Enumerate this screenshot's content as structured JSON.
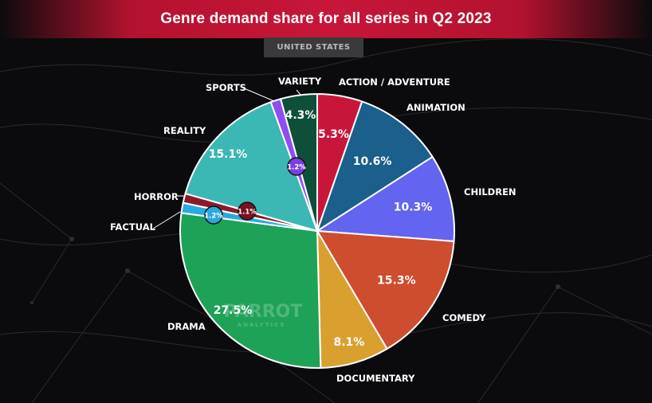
{
  "header": {
    "title": "Genre demand share for all series in Q2 2023",
    "region": "UNITED STATES"
  },
  "watermark": {
    "brand": "PARROT",
    "sub": "ANALYTICS"
  },
  "colors": {
    "title_bar": "#c8163a",
    "background": "#0b0b0d"
  },
  "chart_data": {
    "type": "pie",
    "title": "Genre demand share for all series in Q2 2023",
    "subtitle": "UNITED STATES",
    "unit": "%",
    "start": "12 o'clock",
    "direction": "clockwise",
    "slices": [
      {
        "label": "ACTION / ADVENTURE",
        "value": 5.3,
        "display": "5.3%",
        "color": "#c8163a"
      },
      {
        "label": "ANIMATION",
        "value": 10.6,
        "display": "10.6%",
        "color": "#1b5f8c"
      },
      {
        "label": "CHILDREN",
        "value": 10.3,
        "display": "10.3%",
        "color": "#6364f0"
      },
      {
        "label": "COMEDY",
        "value": 15.3,
        "display": "15.3%",
        "color": "#cd4d2e"
      },
      {
        "label": "DOCUMENTARY",
        "value": 8.1,
        "display": "8.1%",
        "color": "#d9a030"
      },
      {
        "label": "DRAMA",
        "value": 27.5,
        "display": "27.5%",
        "color": "#1ea257"
      },
      {
        "label": "FACTUAL",
        "value": 1.2,
        "display": "1.2%",
        "color": "#2aa9e0"
      },
      {
        "label": "HORROR",
        "value": 1.1,
        "display": "1.1%",
        "color": "#8c1a2a"
      },
      {
        "label": "REALITY",
        "value": 15.1,
        "display": "15.1%",
        "color": "#3bb7b4"
      },
      {
        "label": "SPORTS",
        "value": 1.2,
        "display": "1.2%",
        "color": "#8e4ef0"
      },
      {
        "label": "VARIETY",
        "value": 4.3,
        "display": "4.3%",
        "color": "#0e4f3a"
      }
    ]
  }
}
